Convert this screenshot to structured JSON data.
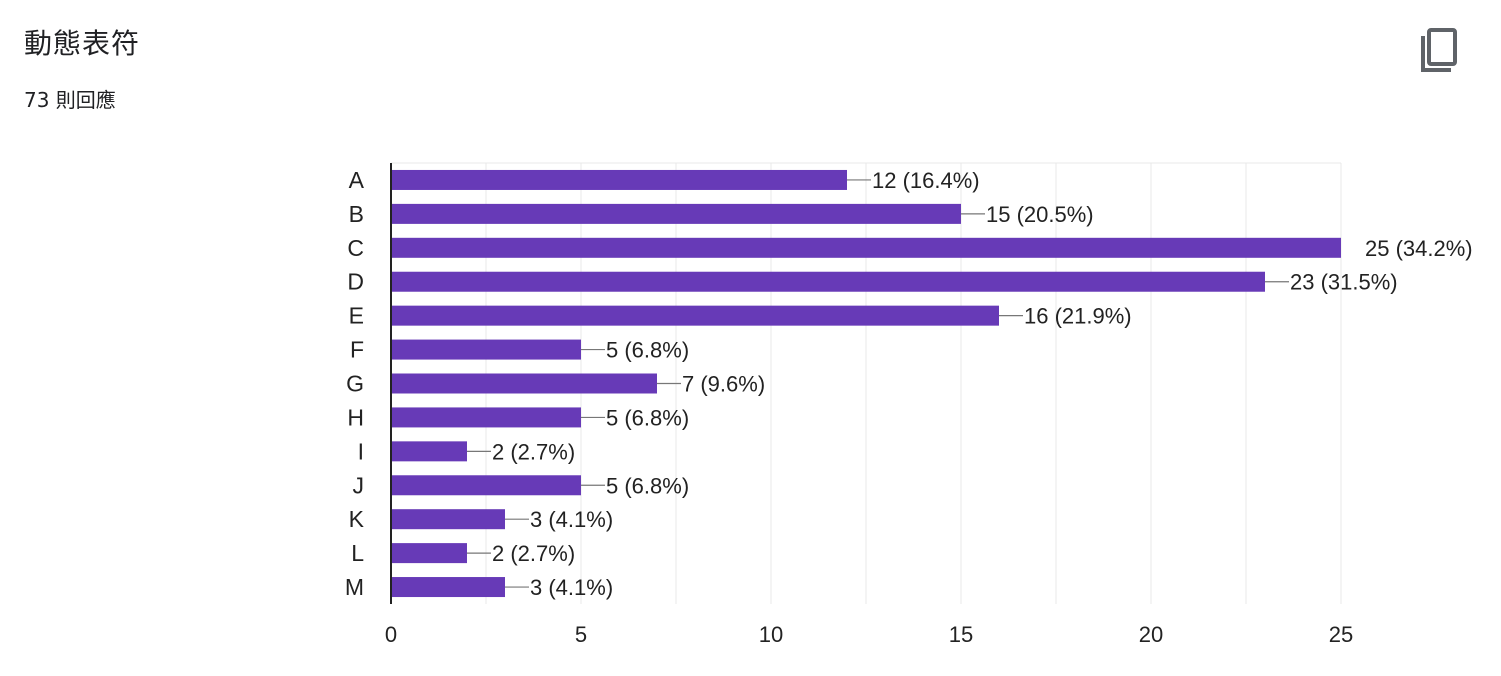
{
  "card": {
    "title": "動態表符",
    "responses": "73 則回應",
    "copy_icon": "copy-icon"
  },
  "colors": {
    "bar": "#673ab7",
    "grid": "#e8e8e8",
    "axis": "#222222",
    "text": "#202124"
  },
  "chart_data": {
    "type": "bar",
    "orientation": "horizontal",
    "categories": [
      "A",
      "B",
      "C",
      "D",
      "E",
      "F",
      "G",
      "H",
      "I",
      "J",
      "K",
      "L",
      "M"
    ],
    "values": [
      12,
      15,
      25,
      23,
      16,
      5,
      7,
      5,
      2,
      5,
      3,
      2,
      3
    ],
    "data_labels": [
      "12 (16.4%)",
      "15 (20.5%)",
      "25 (34.2%)",
      "23 (31.5%)",
      "16 (21.9%)",
      "5 (6.8%)",
      "7 (9.6%)",
      "5 (6.8%)",
      "2 (2.7%)",
      "5 (6.8%)",
      "3 (4.1%)",
      "2 (2.7%)",
      "3 (4.1%)"
    ],
    "xlim": [
      0,
      25
    ],
    "xticks": [
      "0",
      "5",
      "10",
      "15",
      "20",
      "25"
    ],
    "grid": true,
    "legend": "none"
  }
}
